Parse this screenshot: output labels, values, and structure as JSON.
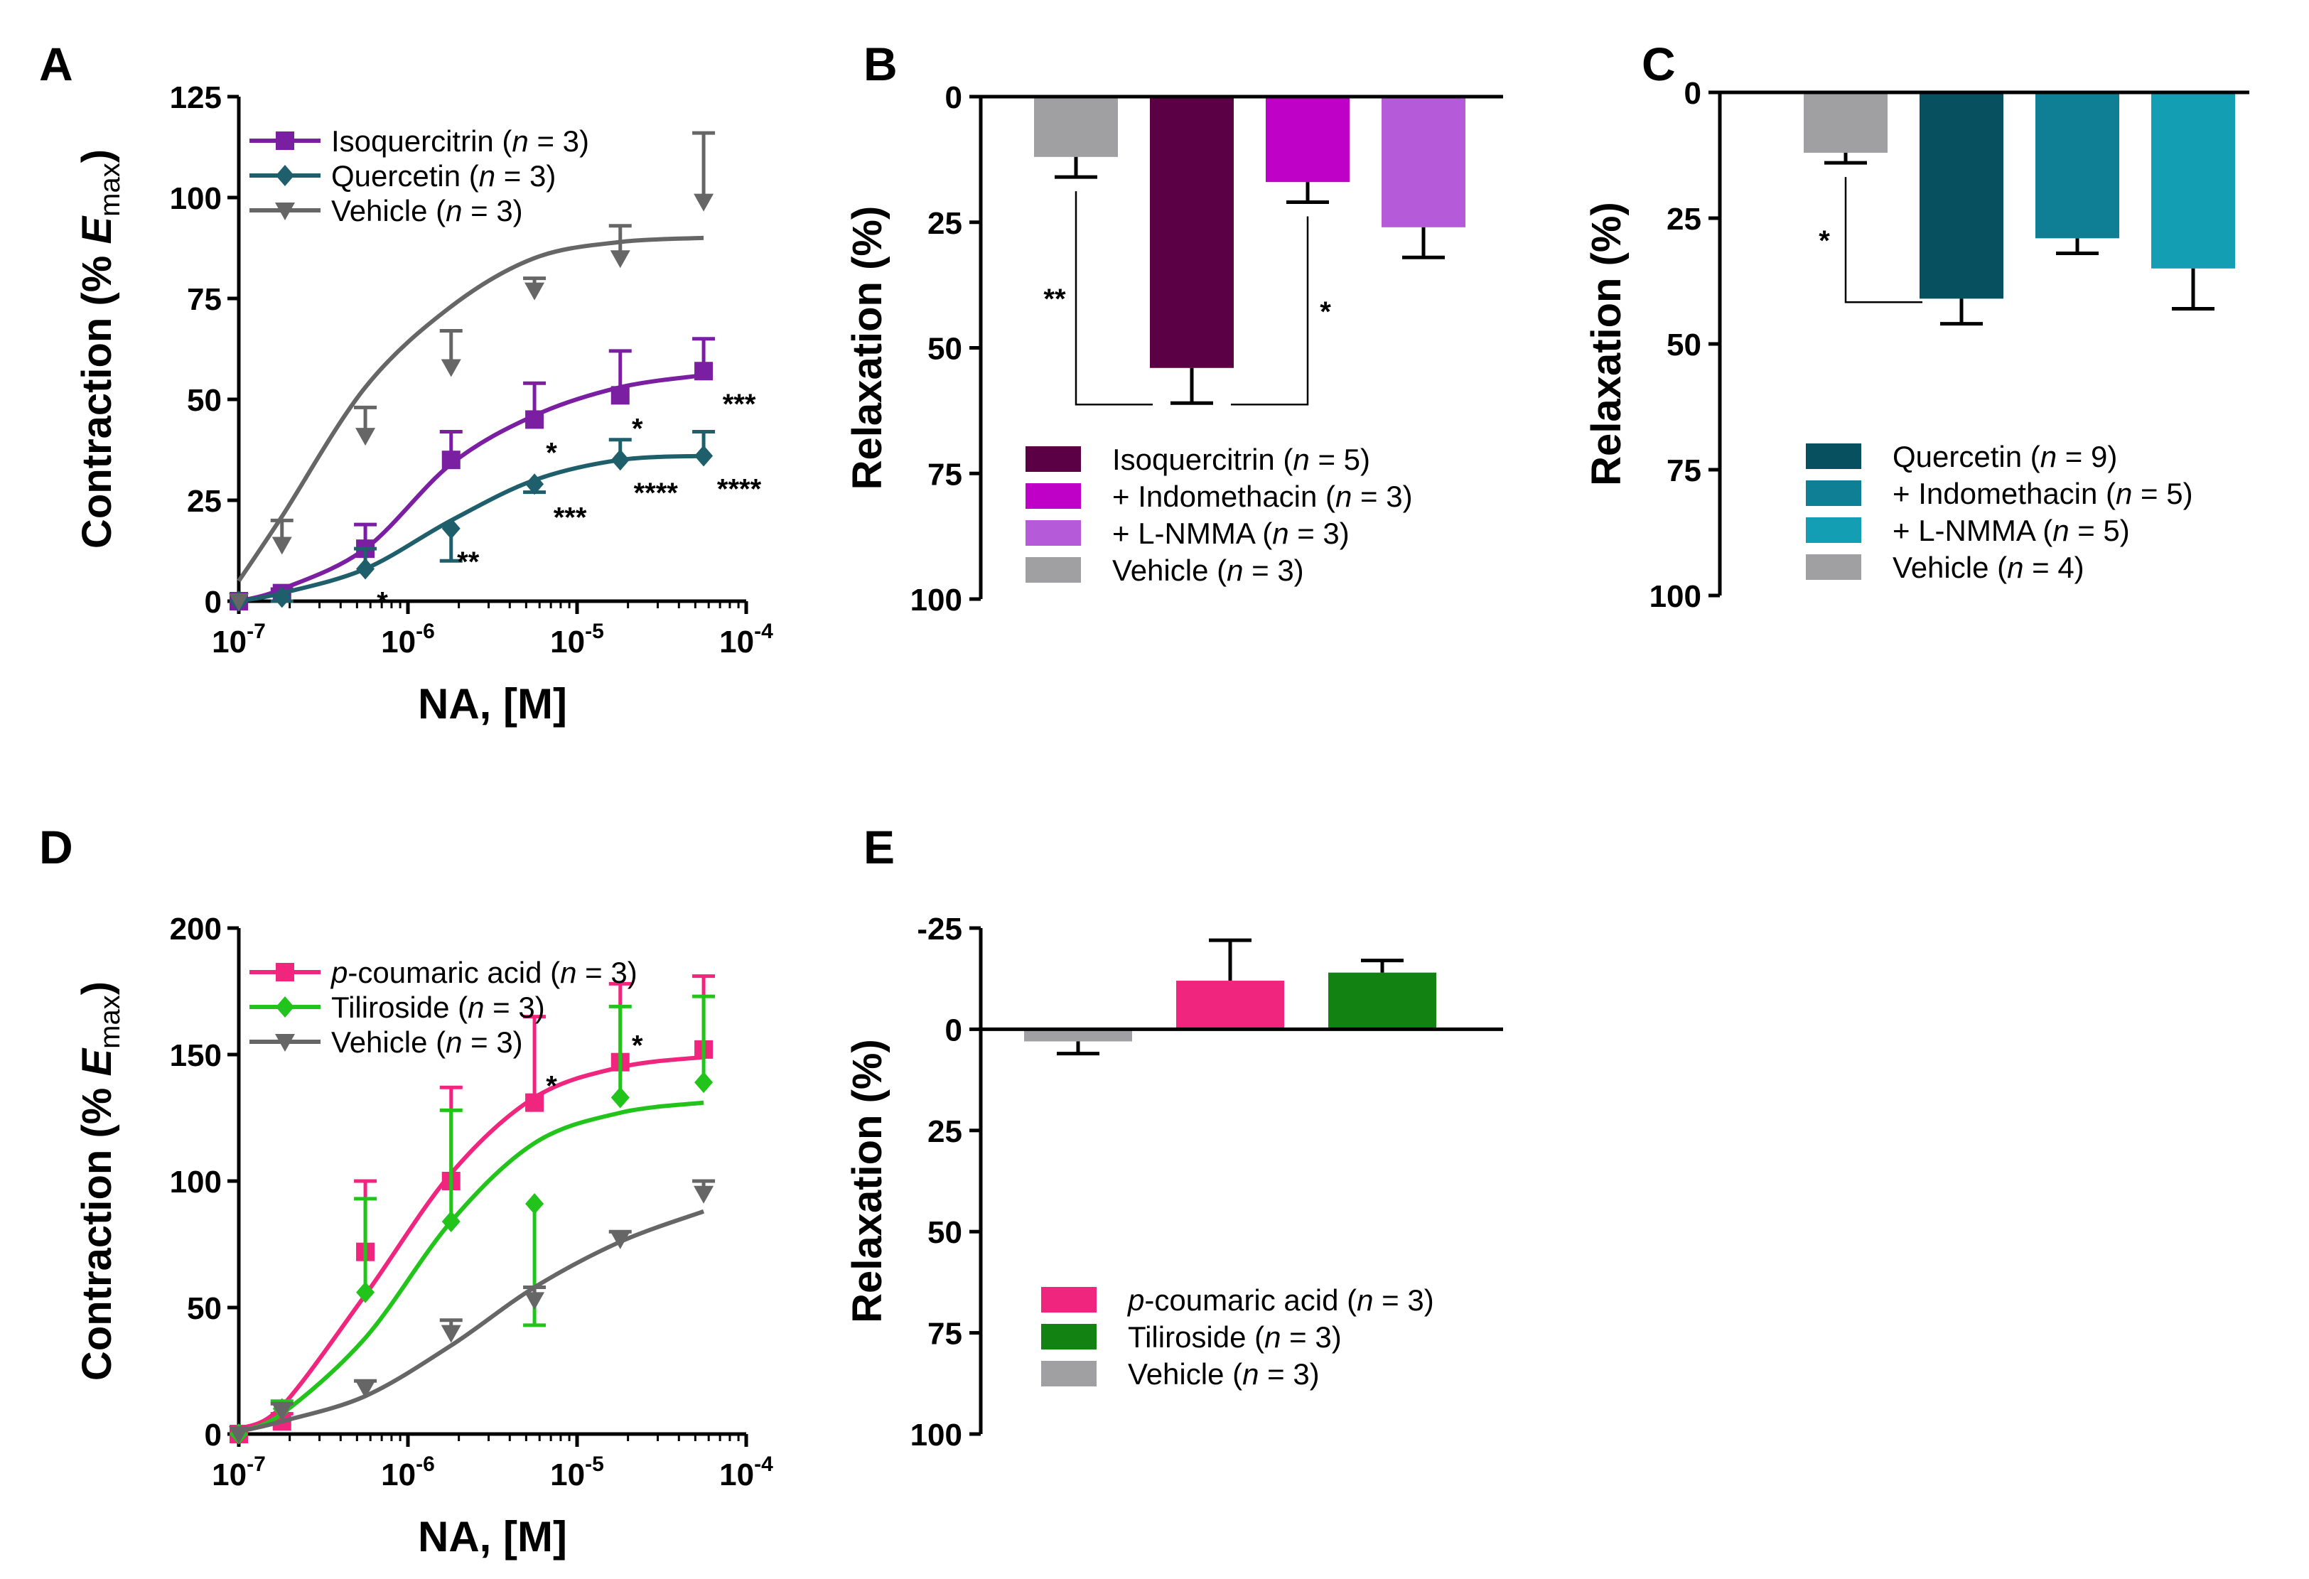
{
  "panels": {
    "A": "A",
    "B": "B",
    "C": "C",
    "D": "D",
    "E": "E"
  },
  "chart_data": [
    {
      "id": "A",
      "type": "line",
      "xscale": "log",
      "xlabel": "NA, [M]",
      "ylabel": "Contraction (% Emax)",
      "ylim": [
        0,
        125
      ],
      "yticks": [
        "0",
        "25",
        "50",
        "75",
        "100",
        "125"
      ],
      "xticks": [
        "10-7",
        "10-6",
        "10-5",
        "10-4"
      ],
      "x": [
        1e-07,
        1.8e-07,
        5.6e-07,
        1.8e-06,
        5.6e-06,
        1.8e-05,
        5.6e-05
      ],
      "legend_position": "top-left",
      "series": [
        {
          "name": "Isoquercitrin",
          "n": "3",
          "color": "#7b1fa2",
          "marker": "square",
          "values": [
            0,
            2,
            13,
            35,
            45,
            51,
            57
          ],
          "errors": [
            0,
            1,
            6,
            7,
            9,
            11,
            8
          ],
          "fit": [
            0,
            3,
            13,
            34,
            46,
            53,
            56
          ],
          "sig": [
            "",
            "",
            "",
            "",
            "*",
            "*",
            "***"
          ]
        },
        {
          "name": "Quercetin",
          "n": "3",
          "color": "#1e5f6b",
          "marker": "diamond",
          "values": [
            0,
            1,
            8,
            18,
            29,
            35,
            36
          ],
          "errors": [
            0,
            1,
            5,
            8,
            2,
            5,
            6
          ],
          "fit": [
            0,
            2,
            8,
            20,
            30,
            35,
            36
          ],
          "sig": [
            "",
            "",
            "*",
            "**",
            "***",
            "****",
            "****"
          ]
        },
        {
          "name": "Vehicle",
          "n": "3",
          "color": "#666666",
          "marker": "triangle-down",
          "values": [
            0,
            14,
            41,
            58,
            77,
            85,
            99
          ],
          "errors": [
            0,
            6,
            7,
            9,
            3,
            8,
            17
          ],
          "fit": [
            5,
            21,
            53,
            73,
            85,
            89,
            90
          ],
          "sig": [
            "",
            "",
            "",
            "",
            "",
            "",
            ""
          ]
        }
      ]
    },
    {
      "id": "B",
      "type": "bar",
      "ylabel": "Relaxation (%)",
      "ylim": [
        0,
        100
      ],
      "yticks": [
        "0",
        "25",
        "50",
        "75",
        "100"
      ],
      "inverted": true,
      "categories": [
        "Vehicle",
        "Isoquercitrin",
        "+ Indomethacin",
        "+ L-NMMA"
      ],
      "values": [
        12,
        54,
        17,
        26
      ],
      "errors": [
        4,
        7,
        4,
        6
      ],
      "colors": [
        "#a0a0a2",
        "#5c0046",
        "#bf00c6",
        "#b55ad8"
      ],
      "legend_position": "bottom-right",
      "legend": [
        {
          "name": "Isoquercitrin",
          "n": "5",
          "color": "#5c0046"
        },
        {
          "name": "+ Indomethacin",
          "n": "3",
          "color": "#bf00c6"
        },
        {
          "name": "+ L-NMMA",
          "n": "3",
          "color": "#b55ad8"
        },
        {
          "name": "Vehicle",
          "n": "3",
          "color": "#a0a0a2"
        }
      ],
      "comparisons": [
        {
          "label": "**",
          "from": 0,
          "to": 1
        },
        {
          "label": "*",
          "from": 1,
          "to": 2
        }
      ]
    },
    {
      "id": "C",
      "type": "bar",
      "ylabel": "Relaxation (%)",
      "ylim": [
        0,
        100
      ],
      "yticks": [
        "0",
        "25",
        "50",
        "75",
        "100"
      ],
      "inverted": true,
      "categories": [
        "Vehicle",
        "Quercetin",
        "+ Indomethacin",
        "+ L-NMMA"
      ],
      "values": [
        12,
        41,
        29,
        35
      ],
      "errors": [
        2,
        5,
        3,
        8
      ],
      "colors": [
        "#a0a0a2",
        "#06505f",
        "#0f7f96",
        "#139eb4"
      ],
      "legend_position": "bottom-right",
      "legend": [
        {
          "name": "Quercetin",
          "n": "9",
          "color": "#06505f"
        },
        {
          "name": "+ Indomethacin",
          "n": "5",
          "color": "#0f7f96"
        },
        {
          "name": "+ L-NMMA",
          "n": "5",
          "color": "#139eb4"
        },
        {
          "name": "Vehicle",
          "n": "4",
          "color": "#a0a0a2"
        }
      ],
      "comparisons": [
        {
          "label": "*",
          "from": 0,
          "to": 1
        }
      ]
    },
    {
      "id": "D",
      "type": "line",
      "xscale": "log",
      "xlabel": "NA, [M]",
      "ylabel": "Contraction (% Emax)",
      "ylim": [
        0,
        200
      ],
      "yticks": [
        "0",
        "50",
        "100",
        "150",
        "200"
      ],
      "xticks": [
        "10-7",
        "10-6",
        "10-5",
        "10-4"
      ],
      "x": [
        1e-07,
        1.8e-07,
        5.6e-07,
        1.8e-06,
        5.6e-06,
        1.8e-05,
        5.6e-05
      ],
      "legend_position": "top-left",
      "series": [
        {
          "name": "p-coumaric acid",
          "n": "3",
          "color": "#f0257e",
          "marker": "square",
          "values": [
            0,
            5,
            72,
            100,
            131,
            147,
            152
          ],
          "errors": [
            0,
            3,
            28,
            37,
            34,
            31,
            29
          ],
          "fit": [
            2,
            11,
            55,
            103,
            133,
            145,
            149
          ],
          "sig": [
            "",
            "",
            "",
            "",
            "*",
            "*",
            ""
          ]
        },
        {
          "name": "Tiliroside",
          "n": "3",
          "color": "#22c41c",
          "marker": "diamond",
          "values": [
            0,
            10,
            56,
            84,
            91,
            133,
            139
          ],
          "errors": [
            0,
            3,
            37,
            44,
            48,
            36,
            34
          ],
          "fit": [
            1,
            8,
            38,
            84,
            115,
            127,
            131
          ],
          "sig": [
            "",
            "",
            "",
            "",
            "",
            "",
            ""
          ]
        },
        {
          "name": "Vehicle",
          "n": "3",
          "color": "#666666",
          "marker": "triangle-down",
          "values": [
            0,
            9,
            18,
            40,
            53,
            77,
            95
          ],
          "errors": [
            0,
            3,
            3,
            5,
            5,
            3,
            5
          ],
          "fit": [
            1,
            5,
            15,
            35,
            58,
            76,
            88
          ],
          "sig": [
            "",
            "",
            "",
            "",
            "",
            "",
            ""
          ]
        }
      ]
    },
    {
      "id": "E",
      "type": "bar",
      "ylabel": "Relaxation (%)",
      "ylim": [
        -25,
        100
      ],
      "yticks": [
        "-25",
        "0",
        "25",
        "50",
        "75",
        "100"
      ],
      "inverted": true,
      "categories": [
        "Vehicle",
        "p-coumaric acid",
        "Tiliroside"
      ],
      "values": [
        3,
        -12,
        -14
      ],
      "errors": [
        3,
        10,
        3
      ],
      "colors": [
        "#a0a0a2",
        "#f0257e",
        "#128212"
      ],
      "legend_position": "bottom-right",
      "legend": [
        {
          "name": "p-coumaric acid",
          "n": "3",
          "color": "#f0257e"
        },
        {
          "name": "Tiliroside",
          "n": "3",
          "color": "#128212"
        },
        {
          "name": "Vehicle",
          "n": "3",
          "color": "#a0a0a2"
        }
      ],
      "comparisons": []
    }
  ]
}
